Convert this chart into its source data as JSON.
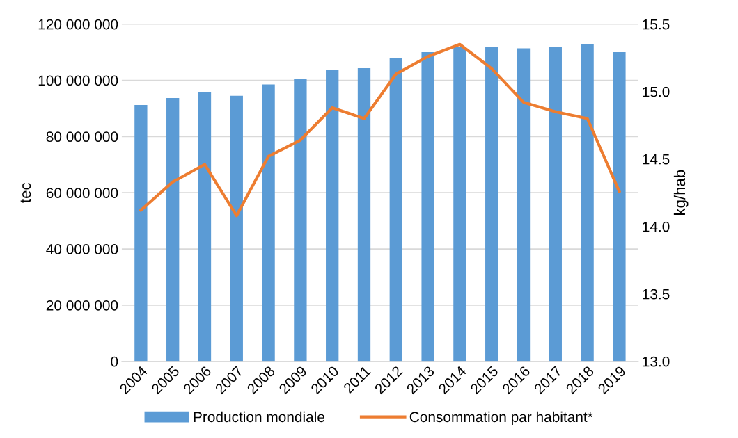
{
  "chart_data": {
    "type": "bar",
    "ylabel": "tec",
    "y2label": "kg/hab",
    "categories": [
      "2004",
      "2005",
      "2006",
      "2007",
      "2008",
      "2009",
      "2010",
      "2011",
      "2012",
      "2013",
      "2014",
      "2015",
      "2016",
      "2017",
      "2018",
      "2019"
    ],
    "series": [
      {
        "name": "Production mondiale",
        "color": "#5b9bd5",
        "values": [
          91200000,
          93700000,
          95700000,
          94500000,
          98500000,
          100500000,
          103700000,
          104300000,
          107800000,
          110000000,
          111900000,
          111900000,
          111400000,
          111900000,
          112900000,
          110000000
        ]
      },
      {
        "name": "Consommation par habitant*",
        "type": "line",
        "axis": "y2",
        "color": "#ed7d31",
        "values": [
          14.12,
          14.33,
          14.46,
          14.08,
          14.52,
          14.64,
          14.88,
          14.8,
          15.13,
          15.26,
          15.35,
          15.17,
          14.92,
          14.85,
          14.8,
          14.26
        ]
      }
    ],
    "ylim": [
      0,
      120000000
    ],
    "yticks": [
      0,
      {
        "value": 20000000,
        "label": "20 000 000"
      },
      {
        "value": 40000000,
        "label": "40 000 000"
      },
      {
        "value": 60000000,
        "label": "60 000 000"
      },
      {
        "value": 80000000,
        "label": "80 000 000"
      },
      {
        "value": 100000000,
        "label": "100 000 000"
      },
      {
        "value": 120000000,
        "label": "120 000 000"
      }
    ],
    "y2lim": [
      13.0,
      15.5
    ],
    "y2ticks": [
      {
        "value": 13.0,
        "label": "13.0"
      },
      {
        "value": 13.5,
        "label": "13.5"
      },
      {
        "value": 14.0,
        "label": "14.0"
      },
      {
        "value": 14.5,
        "label": "14.5"
      },
      {
        "value": 15.0,
        "label": "15.0"
      },
      {
        "value": 15.5,
        "label": "15.5"
      }
    ],
    "grid": "y",
    "legend": "bottom",
    "marker": "none",
    "line_style": "solid"
  }
}
